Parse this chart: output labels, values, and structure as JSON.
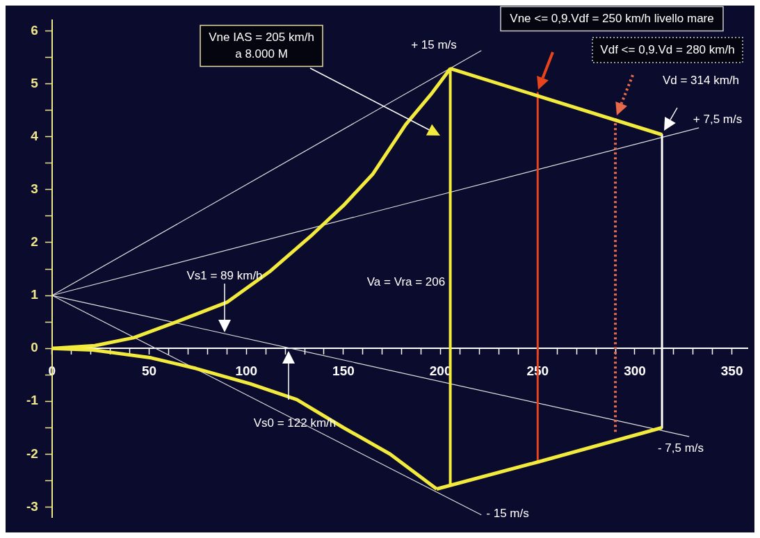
{
  "chart_data": {
    "type": "line",
    "marker": "none",
    "grid": false,
    "legend": false,
    "xlim": [
      0,
      358
    ],
    "ylim": [
      -3.2,
      6.2
    ],
    "xticks": [
      0,
      {
        "value": 10,
        "label": null
      },
      {
        "value": 20,
        "label": null
      },
      {
        "value": 30,
        "label": null
      },
      {
        "value": 40,
        "label": null
      },
      50,
      {
        "value": 60,
        "label": null
      },
      {
        "value": 70,
        "label": null
      },
      {
        "value": 80,
        "label": null
      },
      {
        "value": 90,
        "label": null
      },
      100,
      {
        "value": 110,
        "label": null
      },
      {
        "value": 120,
        "label": null
      },
      {
        "value": 130,
        "label": null
      },
      {
        "value": 140,
        "label": null
      },
      150,
      {
        "value": 160,
        "label": null
      },
      {
        "value": 170,
        "label": null
      },
      {
        "value": 180,
        "label": null
      },
      {
        "value": 190,
        "label": null
      },
      200,
      {
        "value": 210,
        "label": null
      },
      {
        "value": 220,
        "label": null
      },
      {
        "value": 230,
        "label": null
      },
      {
        "value": 240,
        "label": null
      },
      250,
      {
        "value": 260,
        "label": null
      },
      {
        "value": 270,
        "label": null
      },
      {
        "value": 280,
        "label": null
      },
      {
        "value": 290,
        "label": null
      },
      300,
      {
        "value": 310,
        "label": null
      },
      {
        "value": 320,
        "label": null
      },
      {
        "value": 330,
        "label": null
      },
      {
        "value": 340,
        "label": null
      },
      350
    ],
    "yticks": [
      -3,
      {
        "value": -2.5,
        "label": null
      },
      -2,
      {
        "value": -1.5,
        "label": null
      },
      -1,
      {
        "value": -0.5,
        "label": null
      },
      0,
      {
        "value": 0.5,
        "label": null
      },
      1,
      {
        "value": 1.5,
        "label": null
      },
      2,
      {
        "value": 2.5,
        "label": null
      },
      3,
      {
        "value": 3.5,
        "label": null
      },
      4,
      {
        "value": 4.5,
        "label": null
      },
      5,
      {
        "value": 5.5,
        "label": null
      },
      6
    ],
    "series": [
      {
        "color": "#f2ea3c",
        "x": [
          0,
          22,
          42,
          64,
          90,
          112,
          134,
          150,
          165,
          182,
          195,
          205
        ],
        "values": [
          0,
          0.05,
          0.2,
          0.5,
          0.87,
          1.45,
          2.15,
          2.7,
          3.29,
          4.23,
          4.8,
          5.29
        ]
      },
      {
        "color": "#f2ea3c",
        "x": [
          205,
          314
        ],
        "values": [
          5.29,
          4.04
        ]
      },
      {
        "color": "#f2ea3c",
        "x": [
          0,
          21,
          51,
          74,
          102,
          126,
          150,
          174,
          198
        ],
        "values": [
          0,
          -0.03,
          -0.18,
          -0.38,
          -0.67,
          -0.97,
          -1.5,
          -2.0,
          -2.66
        ]
      },
      {
        "color": "#f2ea3c",
        "x": [
          198,
          250,
          314
        ],
        "values": [
          -2.66,
          -2.15,
          -1.5
        ]
      },
      {
        "color": "#f2ea3c",
        "x": [
          205,
          205
        ],
        "values": [
          5.29,
          -2.58
        ]
      },
      {
        "color": "#e8441c",
        "x": [
          250,
          250
        ],
        "values": [
          4.83,
          -2.15
        ]
      },
      {
        "color": "#e86a4a",
        "line_style": "dotted",
        "x": [
          290,
          290
        ],
        "values": [
          4.35,
          -1.6
        ]
      },
      {
        "color": "#ffffff",
        "x": [
          314,
          314
        ],
        "values": [
          4.04,
          -1.5
        ]
      },
      {
        "color": "#e0e0e0",
        "x": [
          0,
          221
        ],
        "values": [
          1,
          5.63
        ]
      },
      {
        "color": "#e0e0e0",
        "x": [
          0,
          333
        ],
        "values": [
          1,
          4.17
        ]
      },
      {
        "color": "#e0e0e0",
        "x": [
          0,
          328
        ],
        "values": [
          1,
          -1.67
        ]
      },
      {
        "color": "#e0e0e0",
        "x": [
          0,
          221
        ],
        "values": [
          1,
          -3.15
        ]
      }
    ],
    "annotations": [
      "Vne IAS = 205 km/h\na 8.000 M",
      "Vne <= 0,9.Vdf = 250 km/h livello mare",
      "Vdf <= 0,9.Vd = 280 km/h",
      "Vd = 314 km/h",
      "+ 15 m/s",
      "+ 7,5 m/s",
      "- 7,5 m/s",
      "- 15 m/s",
      "Vs1 = 89 km/h",
      "Vs0 = 122 km/h",
      "Va = Vra = 206"
    ]
  }
}
